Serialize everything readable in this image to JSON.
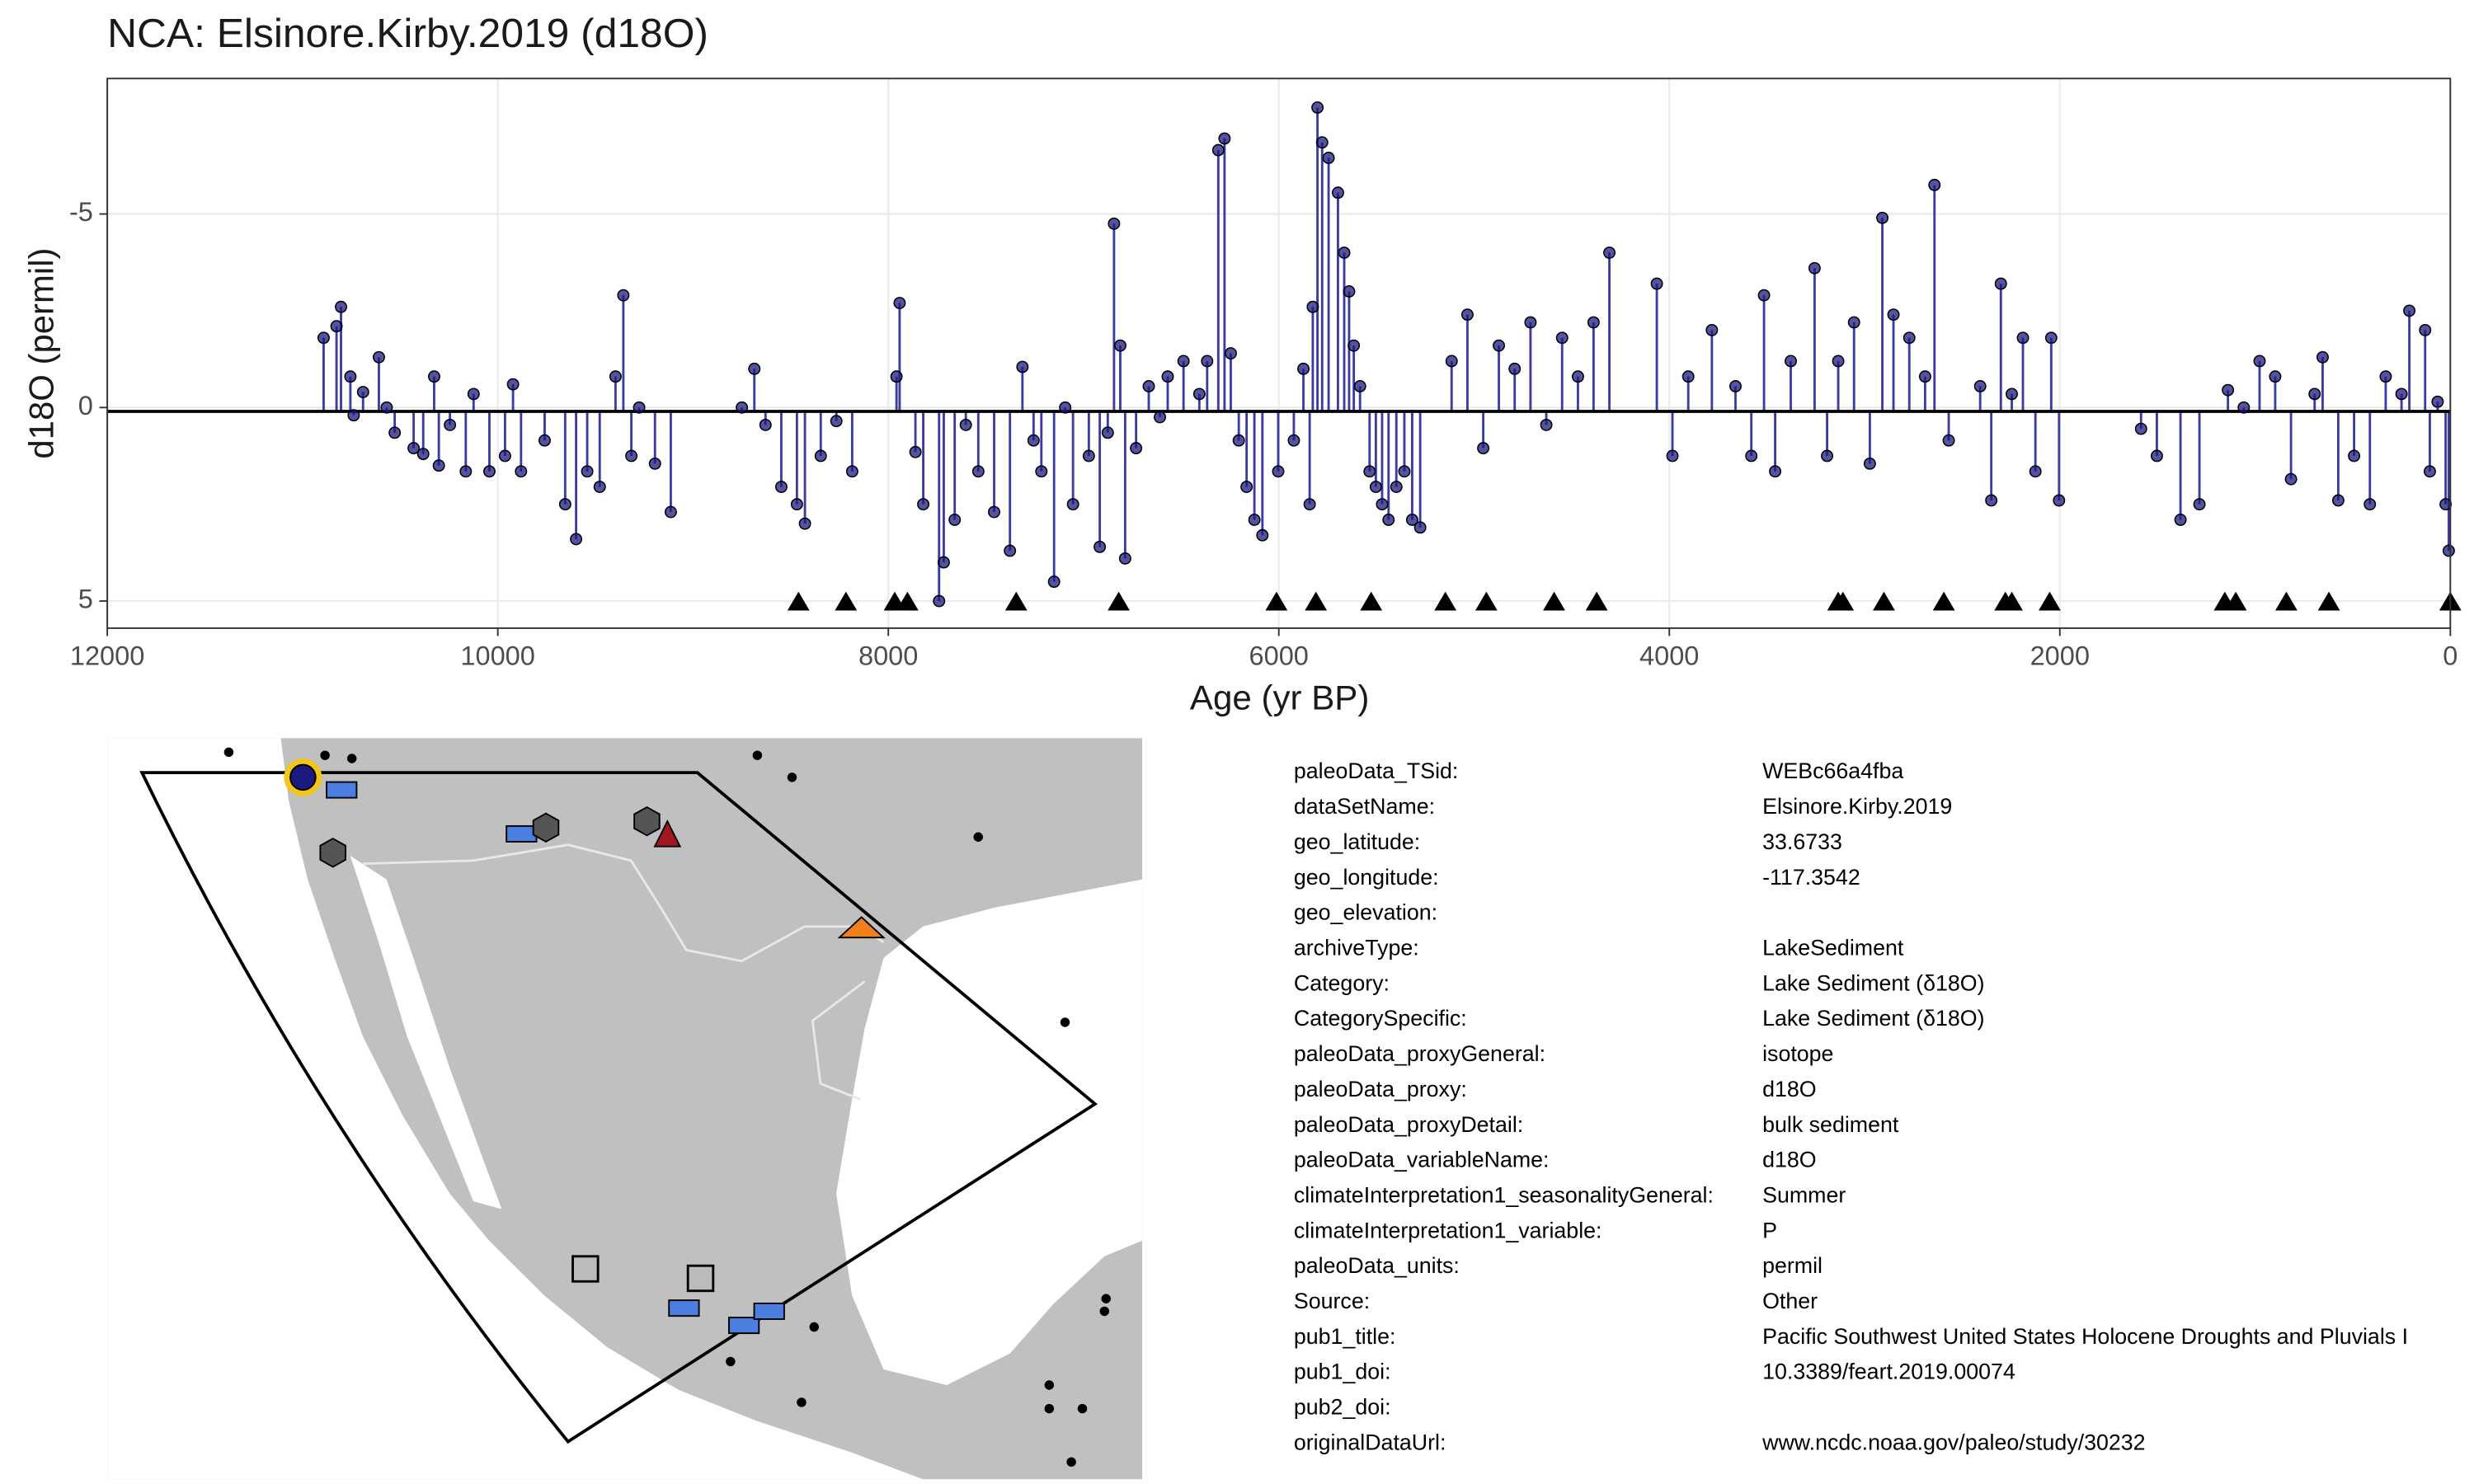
{
  "chart_data": {
    "type": "lollipop",
    "title": "NCA: Elsinore.Kirby.2019 (d18O)",
    "x_label": "Age (yr BP)",
    "y_label": "d18O (permil)",
    "xlim": [
      12000,
      0
    ],
    "ylim": [
      5.7,
      -8.5
    ],
    "xticks": [
      12000,
      10000,
      8000,
      6000,
      4000,
      2000,
      0
    ],
    "yticks": [
      -5,
      0,
      5
    ],
    "grid": true,
    "baseline": 0.1,
    "color": "#1a1a80",
    "stem_color": "#3c3ca0",
    "x": [
      10892,
      10826,
      10803,
      10755,
      10738,
      10690,
      10609,
      10569,
      10528,
      10431,
      10382,
      10326,
      10302,
      10245,
      10164,
      10124,
      10043,
      9963,
      9922,
      9881,
      9760,
      9655,
      9599,
      9542,
      9478,
      9397,
      9357,
      9316,
      9276,
      9195,
      9114,
      8750,
      8686,
      8629,
      8548,
      8468,
      8427,
      8346,
      8266,
      8185,
      7958,
      7942,
      7861,
      7821,
      7740,
      7716,
      7660,
      7603,
      7539,
      7458,
      7377,
      7313,
      7256,
      7216,
      7151,
      7094,
      7054,
      6973,
      6917,
      6876,
      6844,
      6812,
      6787,
      6731,
      6666,
      6609,
      6569,
      6488,
      6407,
      6367,
      6310,
      6278,
      6246,
      6205,
      6165,
      6125,
      6084,
      6003,
      5923,
      5874,
      5842,
      5826,
      5802,
      5778,
      5745,
      5697,
      5665,
      5640,
      5616,
      5584,
      5535,
      5503,
      5471,
      5438,
      5398,
      5357,
      5317,
      5276,
      5115,
      5034,
      4953,
      4873,
      4792,
      4711,
      4630,
      4549,
      4468,
      4388,
      4307,
      4064,
      3984,
      3903,
      3782,
      3661,
      3580,
      3515,
      3458,
      3378,
      3256,
      3192,
      3135,
      3054,
      2973,
      2909,
      2852,
      2771,
      2690,
      2642,
      2569,
      2408,
      2351,
      2302,
      2246,
      2189,
      2125,
      2044,
      2004,
      1584,
      1503,
      1382,
      1285,
      1139,
      1058,
      977,
      897,
      816,
      695,
      654,
      574,
      493,
      412,
      331,
      250,
      210,
      129,
      105,
      65,
      24,
      8
    ],
    "values": [
      -1.8,
      -2.1,
      -2.6,
      -0.8,
      0.2,
      -0.4,
      -1.3,
      0,
      0.65,
      1.05,
      1.2,
      -0.8,
      1.5,
      0.45,
      1.65,
      -0.35,
      1.65,
      1.25,
      -0.6,
      1.65,
      0.85,
      2.5,
      3.4,
      1.65,
      2.05,
      -0.8,
      -2.9,
      1.25,
      0,
      1.45,
      2.7,
      0,
      -1,
      0.45,
      2.05,
      2.5,
      3,
      1.25,
      0.35,
      1.65,
      -0.8,
      -2.7,
      1.15,
      2.5,
      5,
      4,
      2.9,
      0.45,
      1.65,
      2.7,
      3.7,
      -1.05,
      0.85,
      1.65,
      4.5,
      0,
      2.5,
      1.25,
      3.6,
      0.65,
      -4.75,
      -1.6,
      3.9,
      1.05,
      -0.55,
      0.25,
      -0.8,
      -1.2,
      -0.35,
      -1.2,
      -6.65,
      -6.95,
      -1.4,
      0.85,
      2.05,
      2.9,
      3.3,
      1.65,
      0.85,
      -1,
      2.5,
      -2.6,
      -7.75,
      -6.85,
      -6.45,
      -5.55,
      -4,
      -3,
      -1.6,
      -0.55,
      1.65,
      2.05,
      2.5,
      2.9,
      2.05,
      1.65,
      2.9,
      3.1,
      -1.2,
      -2.4,
      1.05,
      -1.6,
      -1,
      -2.2,
      0.45,
      -1.8,
      -0.8,
      -2.2,
      -4,
      -3.2,
      1.25,
      -0.8,
      -2,
      -0.55,
      1.25,
      -2.9,
      1.65,
      -1.2,
      -3.6,
      1.25,
      -1.2,
      -2.2,
      1.45,
      -4.9,
      -2.4,
      -1.8,
      -0.8,
      -5.75,
      0.85,
      -0.55,
      2.4,
      -3.2,
      -0.35,
      -1.8,
      1.65,
      -1.8,
      2.4,
      0.55,
      1.25,
      2.9,
      2.5,
      -0.45,
      0,
      -1.2,
      -0.8,
      1.85,
      -0.35,
      -1.3,
      2.4,
      1.25,
      2.5,
      -0.8,
      -0.35,
      -2.5,
      -2,
      1.65,
      -0.15,
      2.5,
      3.7
    ],
    "chronology_ages": [
      8460,
      8217,
      7967,
      7902,
      7345,
      6820,
      6012,
      5810,
      5527,
      5147,
      4937,
      4590,
      4372,
      3135,
      3111,
      2901,
      2594,
      2279,
      2246,
      2052,
      1155,
      1099,
      840,
      622,
      0
    ],
    "chronology_y": 5
  },
  "metadata": [
    {
      "key": "paleoData_TSid:",
      "value": "WEBc66a4fba"
    },
    {
      "key": "dataSetName:",
      "value": "Elsinore.Kirby.2019"
    },
    {
      "key": "geo_latitude:",
      "value": "33.6733"
    },
    {
      "key": "geo_longitude:",
      "value": "-117.3542"
    },
    {
      "key": "geo_elevation:"
    },
    {
      "key": "archiveType:",
      "value": "LakeSediment"
    },
    {
      "key": "Category:",
      "value": "Lake Sediment (δ18O)"
    },
    {
      "key": "CategorySpecific:",
      "value": "Lake Sediment (δ18O)"
    },
    {
      "key": "paleoData_proxyGeneral:",
      "value": "isotope"
    },
    {
      "key": "paleoData_proxy:",
      "value": "d18O"
    },
    {
      "key": "paleoData_proxyDetail:",
      "value": "bulk sediment"
    },
    {
      "key": "paleoData_variableName:",
      "value": "d18O"
    },
    {
      "key": "climateInterpretation1_seasonalityGeneral:",
      "value": "Summer"
    },
    {
      "key": "climateInterpretation1_variable:",
      "value": "P"
    },
    {
      "key": "paleoData_units:",
      "value": "permil"
    },
    {
      "key": "Source:",
      "value": "Other"
    },
    {
      "key": "pub1_title:",
      "value": "Pacific Southwest United States Holocene Droughts and Pluvials I"
    },
    {
      "key": "pub1_doi:",
      "value": "10.3389/feart.2019.00074"
    },
    {
      "key": "pub2_doi:"
    },
    {
      "key": "originalDataUrl:",
      "value": "www.ncdc.noaa.gov/paleo/study/30232"
    }
  ]
}
